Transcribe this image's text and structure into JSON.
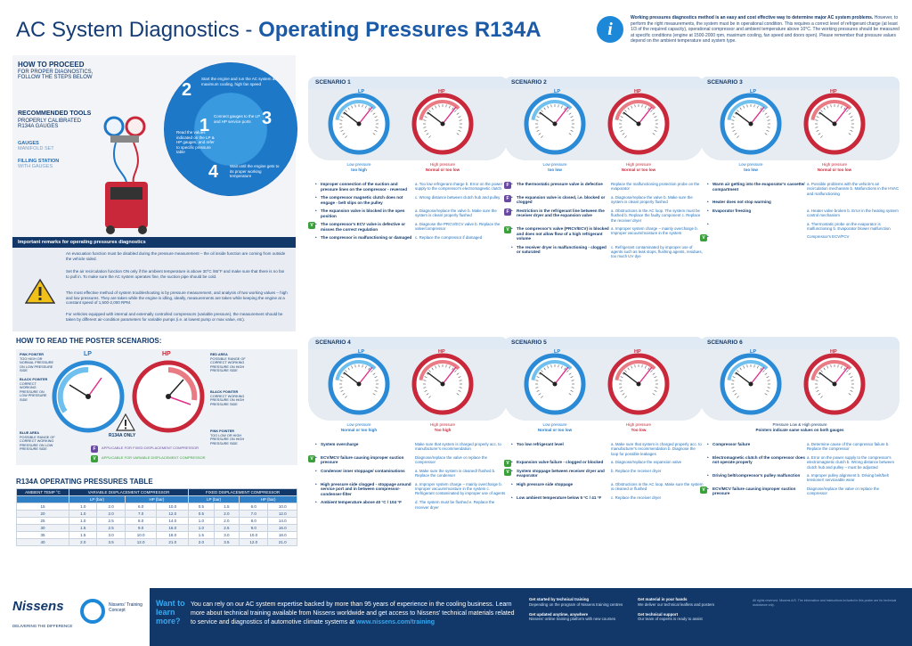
{
  "header": {
    "title_light": "AC System Diagnostics - ",
    "title_bold": "Operating Pressures R134A",
    "intro_bold": "Working pressures diagnostics method is an easy and cost effective way to determine major AC system problems.",
    "intro_text": "However, to perform the right measurements, the system must be in operational condition. This requires a correct level of refrigerant charge (at least 1/3 of the required capacity), operational compressor and ambient temperature above 10°C. The working pressures should be measured at specific conditions (engine at 1500-2000 rpm, maximum cooling, fan speed and doors open). Please remember that pressure values depend on the ambient temperature and system type.",
    "info_icon": "info-icon"
  },
  "left": {
    "howto_head": "HOW TO PROCEED",
    "howto_sub": "FOR PROPER DIAGNOSTICS, FOLLOW THE STEPS BELOW",
    "rec_head": "RECOMMENDED TOOLS",
    "rec_sub": "PROPERLY CALIBRATED R134A GAUGES",
    "tool1": "GAUGES",
    "tool1b": "MANIFOLD SET",
    "tool2": "FILLING STATION",
    "tool2b": "WITH GAUGES",
    "steps": [
      {
        "n": "1",
        "t": "Connect gauges to the LP and HP service ports"
      },
      {
        "n": "2",
        "t": "Start the engine and run the AC system at maximum cooling, high fan speed"
      },
      {
        "n": "3",
        "t": "Read the values indicated on the LP & HP gauges, and refer to specific pressure table"
      },
      {
        "n": "4",
        "t": "Wait until the engine gets to its proper working temperature"
      }
    ],
    "important": "Important remarks for operating pressures diagnostics",
    "imp1": "An evacuation function must be disabled during the pressure measurement – the oil inside function are coming from outside the vehicle sided.",
    "imp2": "Set the air recirculation function ON only if the ambient temperature is above 30°C /86°F and make sure that there is no fan to pull in. To make sure the AC system operates fine, the suction pipe should be cold.",
    "imp3": "The most effective method of system troubleshooting is by pressure measurement, and analysis of two working values – high and low pressures. They are taken while the engine is idling, ideally, measurements are taken while keeping the engine at a constant speed of 1,500-2,000 RPM.",
    "imp4": "For vehicles equipped with internal and externally controlled compressors (variable pressure), the measurement should be taken by different air-condition parameters for variable pumps (i.e. at lowest pump or max value, etc)."
  },
  "reading": {
    "head": "HOW TO READ THE POSTER SCENARIOS:",
    "p1": "PINK POINTER",
    "p1t": "TOO HIGH OR NORMAL PRESSURE ON LOW PRESSURE SIDE",
    "p2": "BLACK POINTER",
    "p2t": "CORRECT WORKING PRESSURE ON LOW PRESSURE SIDE",
    "p3": "BLUE AREA",
    "p3t": "POSSIBLE RANGE OF CORRECT WORKING PRESSURE ON LOW PRESSURE SIDE",
    "p4": "RED AREA",
    "p4t": "POSSIBLE RANGE OF CORRECT WORKING PRESSURE ON HIGH PRESSURE SIDE",
    "p5": "BLACK POINTER",
    "p5t": "CORRECT WORKING PRESSURE ON HIGH PRESSURE SIDE",
    "p6": "PINK POINTER",
    "p6t": "TOO LOW OR HIGH PRESSURE ON HIGH PRESSURE SIDE",
    "lp": "LP",
    "hp": "HP",
    "r134": "R134A ONLY",
    "fixed_text": "APPLICABLE FOR FIXED DISPLACEMENT COMPRESSOR",
    "var_text": "APPLICABLE FOR VARIABLE DISPLACEMENT COMPRESSOR",
    "f": "F",
    "v": "V"
  },
  "table": {
    "head": "R134A OPERATING PRESSURES TABLE",
    "h1": [
      "AMBIENT TEMP °C",
      "VARIABLE DISPLACEMENT COMPRESSOR",
      "FIXED DISPLACEMENT COMPRESSOR"
    ],
    "h2": [
      "",
      "LP (bar)",
      "HP (bar)",
      "LP (bar)",
      "HP (bar)"
    ],
    "rows": [
      [
        "15",
        "1.0",
        "2.0",
        "6.0",
        "10.0",
        "0.5",
        "1.5",
        "6.0",
        "10.0"
      ],
      [
        "20",
        "1.0",
        "2.0",
        "7.0",
        "12.0",
        "0.5",
        "2.0",
        "7.0",
        "12.0"
      ],
      [
        "25",
        "1.0",
        "2.5",
        "8.0",
        "14.0",
        "1.0",
        "2.0",
        "8.0",
        "14.0"
      ],
      [
        "30",
        "1.5",
        "2.5",
        "9.0",
        "16.0",
        "1.0",
        "2.5",
        "9.0",
        "16.0"
      ],
      [
        "35",
        "1.5",
        "3.0",
        "10.0",
        "18.0",
        "1.5",
        "3.0",
        "10.0",
        "18.0"
      ],
      [
        "40",
        "2.0",
        "3.5",
        "12.0",
        "21.0",
        "2.0",
        "3.5",
        "12.0",
        "21.0"
      ]
    ]
  },
  "scenarios": [
    {
      "title": "SCENARIO 1",
      "lp_lab": "Low pressure",
      "lp_st": "too high",
      "hp_lab": "High pressure",
      "hp_st": "Normal or too low",
      "rows": [
        {
          "badge": "",
          "l": "Improper connection of the suction and pressure lines on the compressor - reversed",
          "r": "a. Too low refrigerant charge  b. Error on the power supply to the compressor's electromagnetic clutch"
        },
        {
          "badge": "",
          "l": "The compressor magnetic clutch does not engage - belt slips on the pulley",
          "r": "c. Wrong distance between clutch hub and pulley"
        },
        {
          "badge": "",
          "l": "The expansion valve is blocked in the open position",
          "r": "a. Diagnose/replace the valve  b. Make sure the system is clean/ properly flushed"
        },
        {
          "badge": "V",
          "l": "The compressor's ECV valve is defective or misses the correct regulation",
          "r": "a. Diagnose the PRCV/ECV valve  b. Replace the valve/compressor"
        },
        {
          "badge": "",
          "l": "The compressor is malfunctioning or damaged",
          "r": "c. Replace the compressor if damaged"
        }
      ]
    },
    {
      "title": "SCENARIO 2",
      "lp_lab": "Low pressure",
      "lp_st": "too low",
      "hp_lab": "High pressure",
      "hp_st": "Normal or too low",
      "rows": [
        {
          "badge": "F",
          "l": "The thermostatic pressure valve is defective",
          "r": "Replace the malfunctioning protection probe on the evaporator"
        },
        {
          "badge": "F",
          "l": "The expansion valve is closed, i.e. blocked or clogged",
          "r": "a. Diagnose/replace the valve  b. Make sure the system is clean/ properly flushed"
        },
        {
          "badge": "F",
          "l": "Restriction in the refrigerant line between the receiver dryer and the expansion valve",
          "r": "a. Obstructions in the AC loop. The system must be flushed  b. Replace the faulty component  c. Replace the receiver dryer"
        },
        {
          "badge": "V",
          "l": "The compressor's valve (PRCV/ECV) is blocked and does not allow flow of a high refrigerant volume",
          "r": "a. Improper system charge – mainly overcharge  b. Improper vacuum/moisture in the system"
        },
        {
          "badge": "",
          "l": "The receiver dryer is malfunctioning - clogged or saturated",
          "r": "c. Refrigerant contaminated by improper use of agents such as leak stops, flushing agents, residues, too much UV dye"
        }
      ]
    },
    {
      "title": "SCENARIO 3",
      "lp_lab": "Low pressure",
      "lp_st": "too low",
      "hp_lab": "High pressure",
      "hp_st": "Normal or too low",
      "rows": [
        {
          "badge": "",
          "l": "Warm air getting into the evaporator's cassette/ compartment",
          "r": "a. Possible problems with the vehicle's air recirculation mechanism  b. Malfunctions in the HVAC and malfunctioning"
        },
        {
          "badge": "",
          "l": "Heater does not stop warming",
          "r": ""
        },
        {
          "badge": "",
          "l": "Evaporator freezing",
          "r": "a. Heater valve broken  b. Error in the heating system control mechanism"
        },
        {
          "badge": "",
          "l": "",
          "r": "a. Thermostatic probe on the evaporator is malfunctioning  b. Evaporator blower malfunction"
        },
        {
          "badge": "V",
          "l": "",
          "r": "Compressor's ECV/PCV"
        }
      ]
    },
    {
      "title": "SCENARIO 4",
      "lp_lab": "Low pressure",
      "lp_st": "Normal or too high",
      "hp_lab": "High pressure",
      "hp_st": "Too high",
      "rows": [
        {
          "badge": "",
          "l": "System overcharge",
          "r": "Make sure that system is charged properly acc. to manufacturer's recommendation"
        },
        {
          "badge": "V",
          "l": "ECV/MCV failure causing improper suction pressure",
          "r": "Diagnose/replace the valve or replace the compressor"
        },
        {
          "badge": "",
          "l": "Condenser inner stoppage/ contaminations",
          "r": "a. Make sure the system is cleaned/ flushed  b. Replace the condenser"
        },
        {
          "badge": "",
          "l": "High pressure side clogged - stoppage around service port and in between compressor-condenser-filter",
          "r": "a. Improper system charge – mainly overcharge  b. Improper vacuum/moisture in the system  c. Refrigerant contaminated by improper use of agents"
        },
        {
          "badge": "",
          "l": "Ambient temperature above 40 °C / 104 °F",
          "r": "d. The system must be flushed  e. Replace the receiver dryer"
        }
      ]
    },
    {
      "title": "SCENARIO 5",
      "lp_lab": "Low pressure",
      "lp_st": "Normal or too low",
      "hp_lab": "High pressure",
      "hp_st": "Too low",
      "rows": [
        {
          "badge": "",
          "l": "Too low refrigerant level",
          "r": "a. Make sure that system is charged properly acc. to manufacturer's recommendation  b. Diagnose the loop for possible leakages"
        },
        {
          "badge": "V",
          "l": "Expansion valve failure - clogged or blocked",
          "r": "a. Diagnose/replace the expansion valve"
        },
        {
          "badge": "V",
          "l": "System stoppage between receiver dryer and evaporator",
          "r": "b. Replace the receiver dryer"
        },
        {
          "badge": "",
          "l": "High pressure side stoppage",
          "r": "a. Obstructions in the AC loop. Make sure the system is cleaned or flushed"
        },
        {
          "badge": "",
          "l": "Low ambient temperature below 5 °C / 41 °F",
          "r": "c. Replace the receiver dryer"
        }
      ]
    },
    {
      "title": "SCENARIO 6",
      "lp_lab": "Low pressure",
      "lp_st": "",
      "hp_lab": "High pressure",
      "hp_st": "",
      "note": "Pointers indicate same values on both gauges",
      "note_top": "Pressure Low & High pressure",
      "rows": [
        {
          "badge": "",
          "l": "Compressor failure",
          "r": "a. Determine cause of the compressor failure  b. Replace the compressor"
        },
        {
          "badge": "",
          "l": "Electromagnetic clutch of the compressor does not operate properly",
          "r": "a. Error on the power supply to the compressor's electromagnetic clutch  b. Wrong distance between clutch hub and pulley – must be adjusted"
        },
        {
          "badge": "",
          "l": "Driving belt/compressor's pulley malfunction",
          "r": "a. Improper pulley alignment  b. Driving belt/belt tensioner/ serviceable wear"
        },
        {
          "badge": "V",
          "l": "ECV/MCV failure causing improper suction pressure",
          "r": "Diagnose/replace the valve or replace the compressor"
        }
      ]
    }
  ],
  "footer": {
    "logo": "Nissens",
    "tagline": "DELIVERING THE DIFFERENCE",
    "tc": "Nissens' Training Concept",
    "want": "Want to learn more?",
    "text1": "You can rely on our AC system expertise backed by more than 95 years of experience in the cooling business.",
    "text2": "Learn more about technical training available from Nissens worldwide and get access to Nissens' technical materials related to service and diagnostics of automotive climate systems at ",
    "url": "www.nissens.com/training",
    "c1h": "Get started by technical training",
    "c1": "Depending on the program of Nissens training centres",
    "c2h": "Get updated anytime, anywhere",
    "c2": "Nissens' online training platform with new courses",
    "c3h": "Get material in your hands",
    "c3": "We deliver our technical leaflets and posters",
    "c4h": "Get technical support",
    "c4": "Our team of experts is ready to assist",
    "fine": "All rights reserved. Nissens A/S. The information and instructions included in this poster are for technical assistance only."
  }
}
